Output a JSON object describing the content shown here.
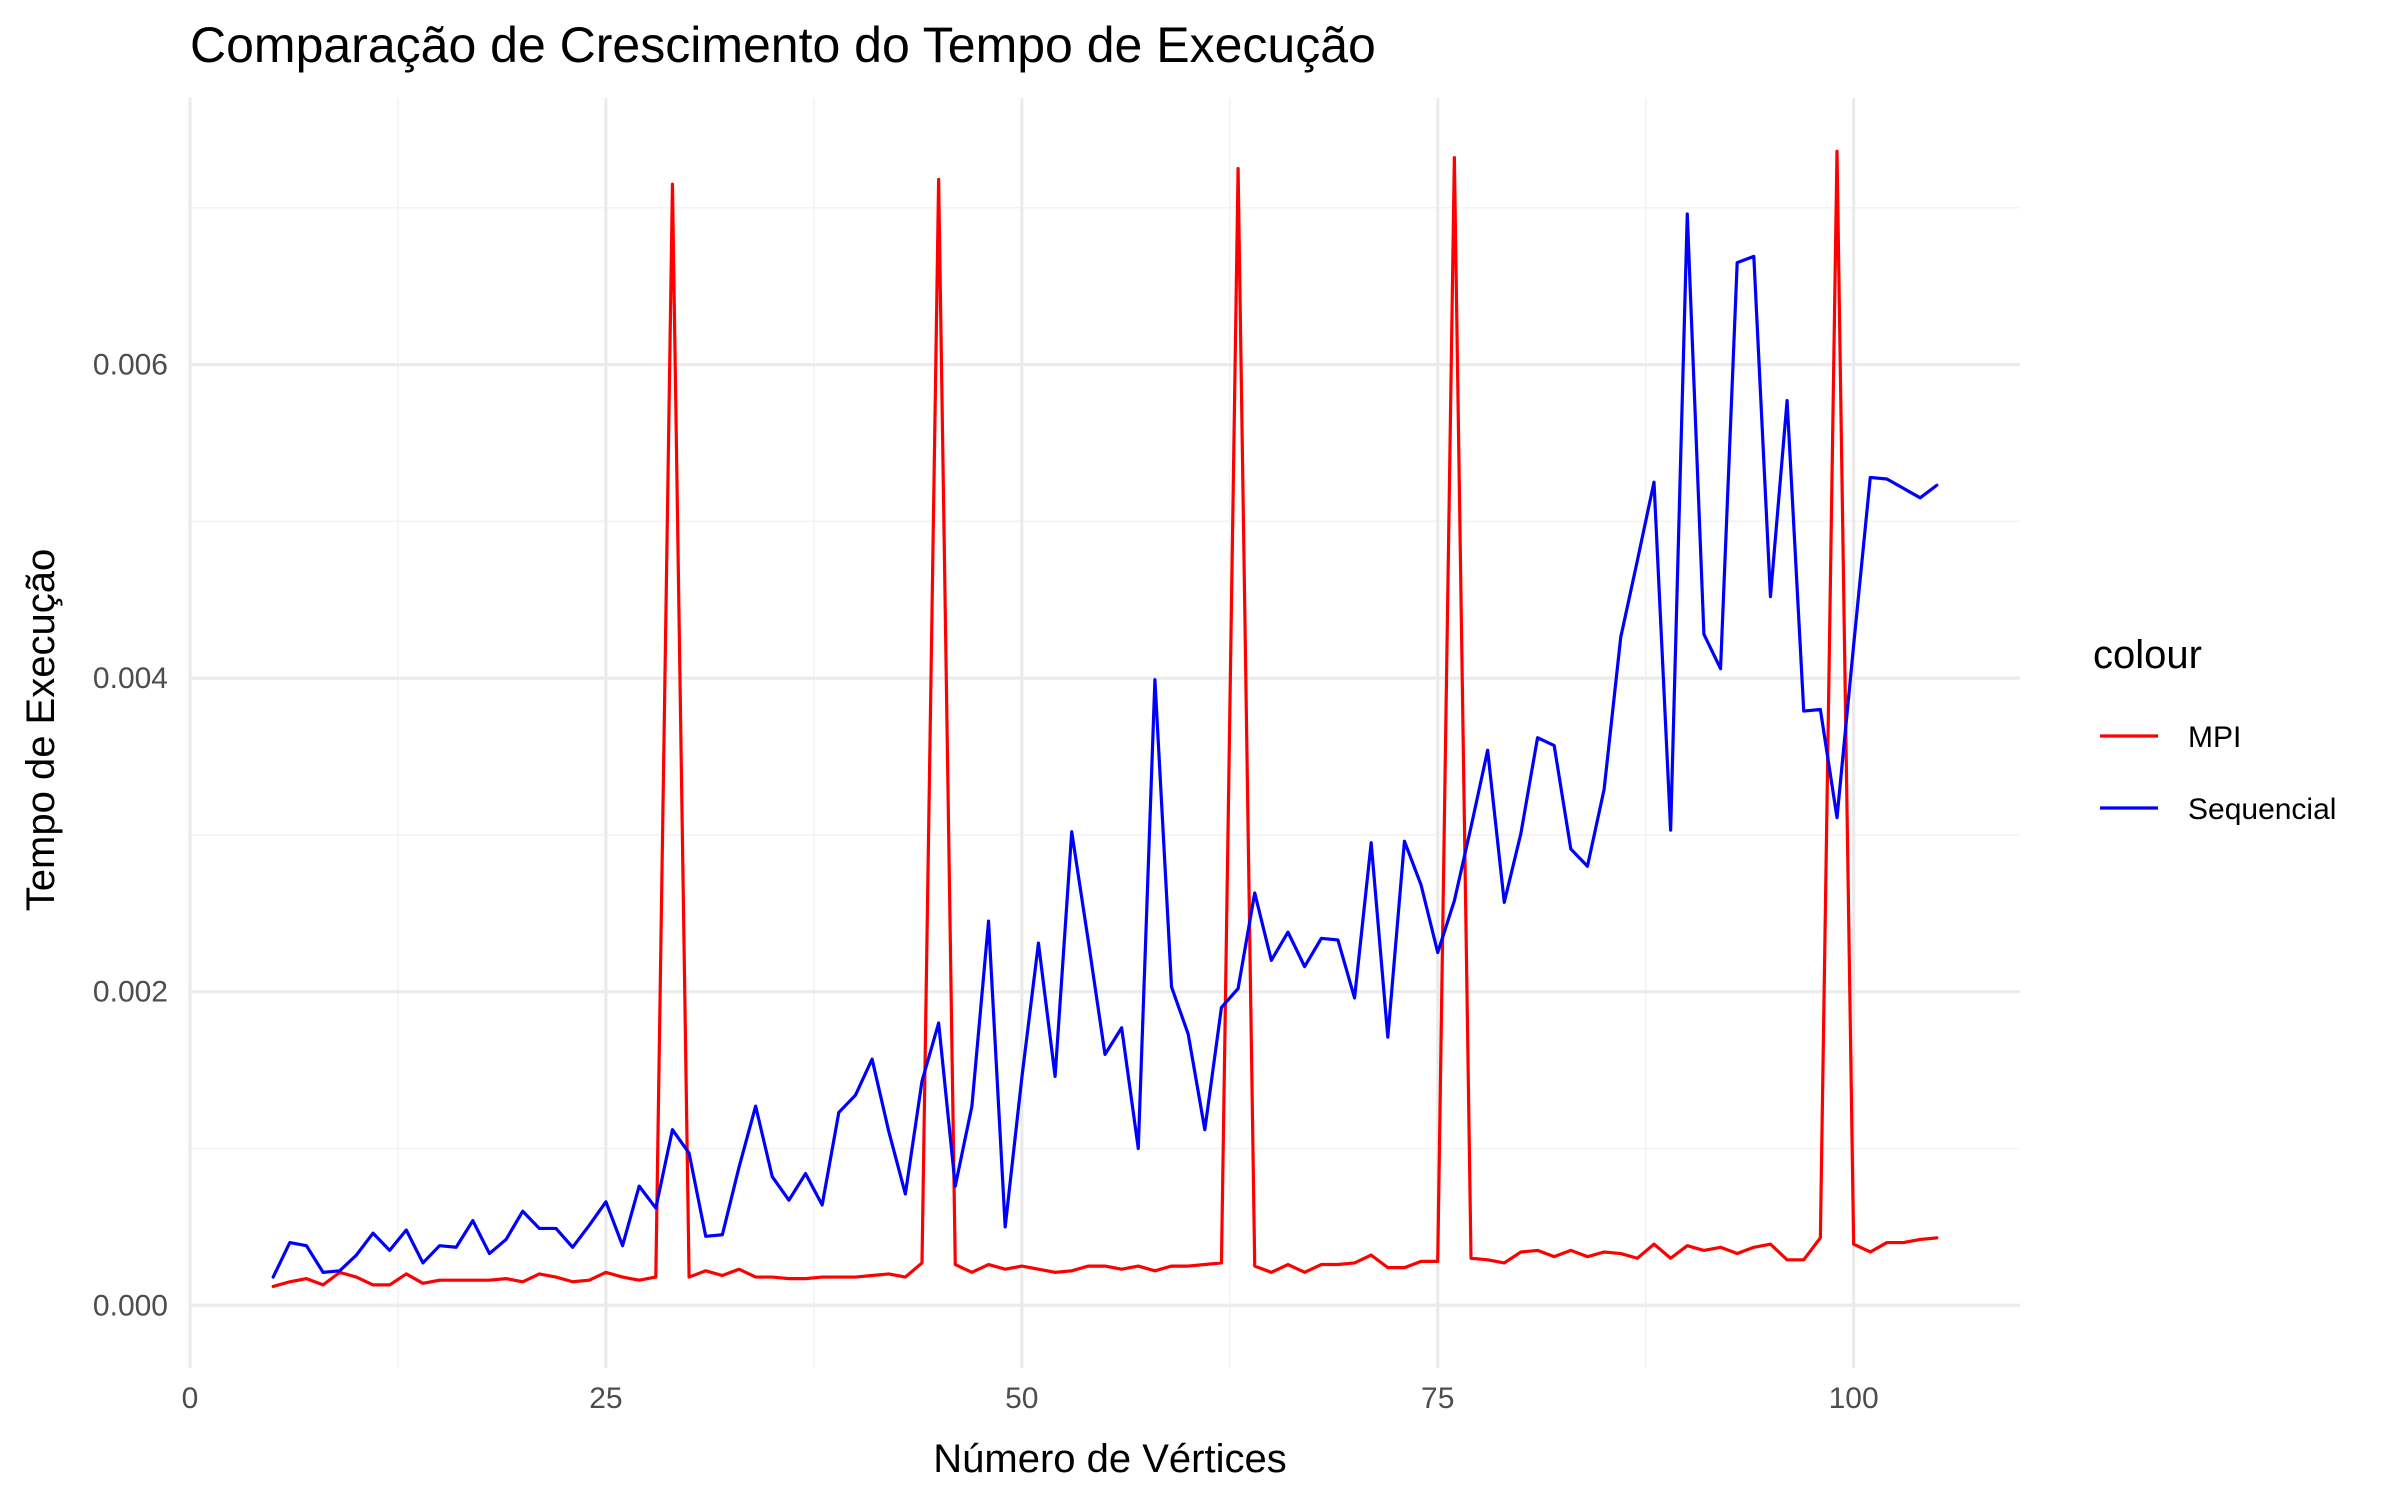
{
  "chart_data": {
    "type": "line",
    "title": "Comparação de Crescimento do Tempo de Execução",
    "xlabel": "Número de Vértices",
    "ylabel": "Tempo de Execução",
    "xlim": [
      0,
      110
    ],
    "ylim": [
      -0.0004,
      0.0077
    ],
    "x_ticks": [
      0,
      25,
      50,
      75,
      100
    ],
    "x_tick_labels": [
      "0",
      "25",
      "50",
      "75",
      "100"
    ],
    "y_ticks": [
      0,
      0.002,
      0.004,
      0.006
    ],
    "y_tick_labels": [
      "0.000",
      "0.002",
      "0.004",
      "0.006"
    ],
    "grid": true,
    "legend": {
      "title": "colour",
      "position": "right"
    },
    "series": [
      {
        "name": "MPI",
        "color": "#ff0000",
        "points": [
          [
            5,
            0.00012
          ],
          [
            6,
            0.00015
          ],
          [
            7,
            0.00017
          ],
          [
            8,
            0.00013
          ],
          [
            9,
            0.00021
          ],
          [
            10,
            0.00018
          ],
          [
            11,
            0.00013
          ],
          [
            12,
            0.00013
          ],
          [
            13,
            0.0002
          ],
          [
            14,
            0.00014
          ],
          [
            15,
            0.00016
          ],
          [
            16,
            0.00016
          ],
          [
            17,
            0.00016
          ],
          [
            18,
            0.00016
          ],
          [
            19,
            0.00017
          ],
          [
            20,
            0.00015
          ],
          [
            21,
            0.0002
          ],
          [
            22,
            0.00018
          ],
          [
            23,
            0.00015
          ],
          [
            24,
            0.00016
          ],
          [
            25,
            0.00021
          ],
          [
            26,
            0.00018
          ],
          [
            27,
            0.00016
          ],
          [
            28,
            0.00018
          ],
          [
            29,
            0.00715
          ],
          [
            30,
            0.00018
          ],
          [
            31,
            0.00022
          ],
          [
            32,
            0.00019
          ],
          [
            33,
            0.00023
          ],
          [
            34,
            0.00018
          ],
          [
            35,
            0.00018
          ],
          [
            36,
            0.00017
          ],
          [
            37,
            0.00017
          ],
          [
            38,
            0.00018
          ],
          [
            39,
            0.00018
          ],
          [
            40,
            0.00018
          ],
          [
            41,
            0.00019
          ],
          [
            42,
            0.0002
          ],
          [
            43,
            0.00018
          ],
          [
            44,
            0.00027
          ],
          [
            45,
            0.00718
          ],
          [
            46,
            0.00026
          ],
          [
            47,
            0.00021
          ],
          [
            48,
            0.00026
          ],
          [
            49,
            0.00023
          ],
          [
            50,
            0.00025
          ],
          [
            51,
            0.00023
          ],
          [
            52,
            0.00021
          ],
          [
            53,
            0.00022
          ],
          [
            54,
            0.00025
          ],
          [
            55,
            0.00025
          ],
          [
            56,
            0.00023
          ],
          [
            57,
            0.00025
          ],
          [
            58,
            0.00022
          ],
          [
            59,
            0.00025
          ],
          [
            60,
            0.00025
          ],
          [
            61,
            0.00026
          ],
          [
            62,
            0.00027
          ],
          [
            63,
            0.00725
          ],
          [
            64,
            0.00025
          ],
          [
            65,
            0.00021
          ],
          [
            66,
            0.00026
          ],
          [
            67,
            0.00021
          ],
          [
            68,
            0.00026
          ],
          [
            69,
            0.00026
          ],
          [
            70,
            0.00027
          ],
          [
            71,
            0.00032
          ],
          [
            72,
            0.00024
          ],
          [
            73,
            0.00024
          ],
          [
            74,
            0.00028
          ],
          [
            75,
            0.00028
          ],
          [
            76,
            0.00732
          ],
          [
            77,
            0.0003
          ],
          [
            78,
            0.00029
          ],
          [
            79,
            0.00027
          ],
          [
            80,
            0.00034
          ],
          [
            81,
            0.00035
          ],
          [
            82,
            0.00031
          ],
          [
            83,
            0.00035
          ],
          [
            84,
            0.00031
          ],
          [
            85,
            0.00034
          ],
          [
            86,
            0.00033
          ],
          [
            87,
            0.0003
          ],
          [
            88,
            0.00039
          ],
          [
            89,
            0.0003
          ],
          [
            90,
            0.00038
          ],
          [
            91,
            0.00035
          ],
          [
            92,
            0.00037
          ],
          [
            93,
            0.00033
          ],
          [
            94,
            0.00037
          ],
          [
            95,
            0.00039
          ],
          [
            96,
            0.00029
          ],
          [
            97,
            0.00029
          ],
          [
            98,
            0.00043
          ],
          [
            99,
            0.00736
          ],
          [
            100,
            0.00039
          ],
          [
            101,
            0.00034
          ],
          [
            102,
            0.0004
          ],
          [
            103,
            0.0004
          ],
          [
            104,
            0.00042
          ],
          [
            105,
            0.00043
          ]
        ]
      },
      {
        "name": "Sequencial",
        "color": "#0000ff",
        "points": [
          [
            5,
            0.00018
          ],
          [
            6,
            0.0004
          ],
          [
            7,
            0.00038
          ],
          [
            8,
            0.00021
          ],
          [
            9,
            0.00022
          ],
          [
            10,
            0.00032
          ],
          [
            11,
            0.00046
          ],
          [
            12,
            0.00035
          ],
          [
            13,
            0.00048
          ],
          [
            14,
            0.00027
          ],
          [
            15,
            0.00038
          ],
          [
            16,
            0.00037
          ],
          [
            17,
            0.00054
          ],
          [
            18,
            0.00033
          ],
          [
            19,
            0.00042
          ],
          [
            20,
            0.0006
          ],
          [
            21,
            0.00049
          ],
          [
            22,
            0.00049
          ],
          [
            23,
            0.00037
          ],
          [
            24,
            0.00051
          ],
          [
            25,
            0.00066
          ],
          [
            26,
            0.00038
          ],
          [
            27,
            0.00076
          ],
          [
            28,
            0.00062
          ],
          [
            29,
            0.00112
          ],
          [
            30,
            0.00097
          ],
          [
            31,
            0.00044
          ],
          [
            32,
            0.00045
          ],
          [
            33,
            0.00088
          ],
          [
            34,
            0.00127
          ],
          [
            35,
            0.00082
          ],
          [
            36,
            0.00067
          ],
          [
            37,
            0.00084
          ],
          [
            38,
            0.00064
          ],
          [
            39,
            0.00123
          ],
          [
            40,
            0.00134
          ],
          [
            41,
            0.00157
          ],
          [
            42,
            0.00111
          ],
          [
            43,
            0.00071
          ],
          [
            44,
            0.00143
          ],
          [
            45,
            0.0018
          ],
          [
            46,
            0.00076
          ],
          [
            47,
            0.00127
          ],
          [
            48,
            0.00245
          ],
          [
            49,
            0.0005
          ],
          [
            50,
            0.00145
          ],
          [
            51,
            0.00231
          ],
          [
            52,
            0.00146
          ],
          [
            53,
            0.00302
          ],
          [
            54,
            0.00232
          ],
          [
            55,
            0.0016
          ],
          [
            56,
            0.00177
          ],
          [
            57,
            0.001
          ],
          [
            58,
            0.00399
          ],
          [
            59,
            0.00203
          ],
          [
            60,
            0.00173
          ],
          [
            61,
            0.00112
          ],
          [
            62,
            0.0019
          ],
          [
            63,
            0.00202
          ],
          [
            64,
            0.00263
          ],
          [
            65,
            0.0022
          ],
          [
            66,
            0.00238
          ],
          [
            67,
            0.00216
          ],
          [
            68,
            0.00234
          ],
          [
            69,
            0.00233
          ],
          [
            70,
            0.00196
          ],
          [
            71,
            0.00295
          ],
          [
            72,
            0.00171
          ],
          [
            73,
            0.00296
          ],
          [
            74,
            0.00268
          ],
          [
            75,
            0.00225
          ],
          [
            76,
            0.00258
          ],
          [
            77,
            0.00305
          ],
          [
            78,
            0.00354
          ],
          [
            79,
            0.00257
          ],
          [
            80,
            0.00301
          ],
          [
            81,
            0.00362
          ],
          [
            82,
            0.00357
          ],
          [
            83,
            0.00291
          ],
          [
            84,
            0.0028
          ],
          [
            85,
            0.00329
          ],
          [
            86,
            0.00426
          ],
          [
            87,
            0.00475
          ],
          [
            88,
            0.00525
          ],
          [
            89,
            0.00303
          ],
          [
            90,
            0.00696
          ],
          [
            91,
            0.00428
          ],
          [
            92,
            0.00406
          ],
          [
            93,
            0.00665
          ],
          [
            94,
            0.00669
          ],
          [
            95,
            0.00452
          ],
          [
            96,
            0.00577
          ],
          [
            97,
            0.00379
          ],
          [
            98,
            0.0038
          ],
          [
            99,
            0.00311
          ],
          [
            100,
            0.00421
          ],
          [
            101,
            0.00528
          ],
          [
            102,
            0.00527
          ],
          [
            103,
            0.00521
          ],
          [
            104,
            0.00515
          ],
          [
            105,
            0.00523
          ]
        ]
      }
    ]
  }
}
